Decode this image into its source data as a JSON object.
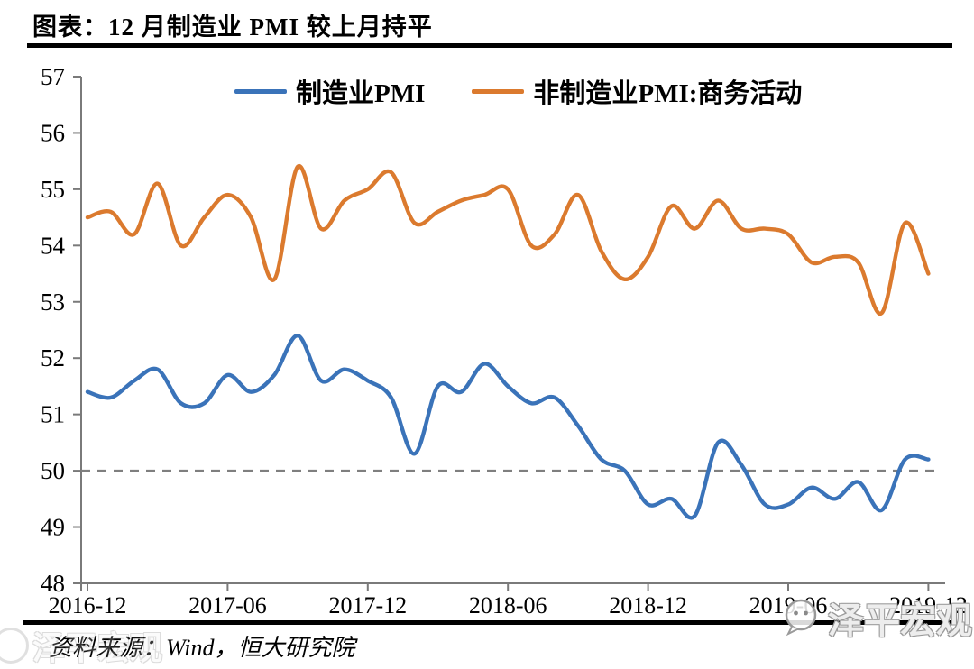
{
  "page": {
    "title": "图表：12 月制造业 PMI 较上月持平",
    "source": "资料来源：Wind，恒大研究院",
    "watermark": "泽平宏观"
  },
  "chart_data": {
    "type": "line",
    "title": "12 月制造业 PMI 较上月持平",
    "x": [
      "2016-12",
      "2017-01",
      "2017-02",
      "2017-03",
      "2017-04",
      "2017-05",
      "2017-06",
      "2017-07",
      "2017-08",
      "2017-09",
      "2017-10",
      "2017-11",
      "2017-12",
      "2018-01",
      "2018-02",
      "2018-03",
      "2018-04",
      "2018-05",
      "2018-06",
      "2018-07",
      "2018-08",
      "2018-09",
      "2018-10",
      "2018-11",
      "2018-12",
      "2019-01",
      "2019-02",
      "2019-03",
      "2019-04",
      "2019-05",
      "2019-06",
      "2019-07",
      "2019-08",
      "2019-09",
      "2019-10",
      "2019-11",
      "2019-12"
    ],
    "series": [
      {
        "name": "制造业PMI",
        "color": "#3A73B9",
        "values": [
          51.4,
          51.3,
          51.6,
          51.8,
          51.2,
          51.2,
          51.7,
          51.4,
          51.7,
          52.4,
          51.6,
          51.8,
          51.6,
          51.3,
          50.3,
          51.5,
          51.4,
          51.9,
          51.5,
          51.2,
          51.3,
          50.8,
          50.2,
          50.0,
          49.4,
          49.5,
          49.2,
          50.5,
          50.1,
          49.4,
          49.4,
          49.7,
          49.5,
          49.8,
          49.3,
          50.2,
          50.2
        ]
      },
      {
        "name": "非制造业PMI:商务活动",
        "color": "#DB7A2E",
        "values": [
          54.5,
          54.6,
          54.2,
          55.1,
          54.0,
          54.5,
          54.9,
          54.5,
          53.4,
          55.4,
          54.3,
          54.8,
          55.0,
          55.3,
          54.4,
          54.6,
          54.8,
          54.9,
          55.0,
          54.0,
          54.2,
          54.9,
          53.9,
          53.4,
          53.8,
          54.7,
          54.3,
          54.8,
          54.3,
          54.3,
          54.2,
          53.7,
          53.8,
          53.7,
          52.8,
          54.4,
          53.5
        ]
      }
    ],
    "x_tick_labels": [
      "2016-12",
      "2017-06",
      "2017-12",
      "2018-06",
      "2018-12",
      "2019-06",
      "2019-12"
    ],
    "y_ticks": [
      48,
      49,
      50,
      51,
      52,
      53,
      54,
      55,
      56,
      57
    ],
    "ylim": [
      48,
      57
    ],
    "reference_line": {
      "y": 50,
      "color": "#7F7F7F",
      "style": "dashed"
    },
    "legend_position": "top",
    "grid": false,
    "axis_color": "#7A7A7A"
  }
}
